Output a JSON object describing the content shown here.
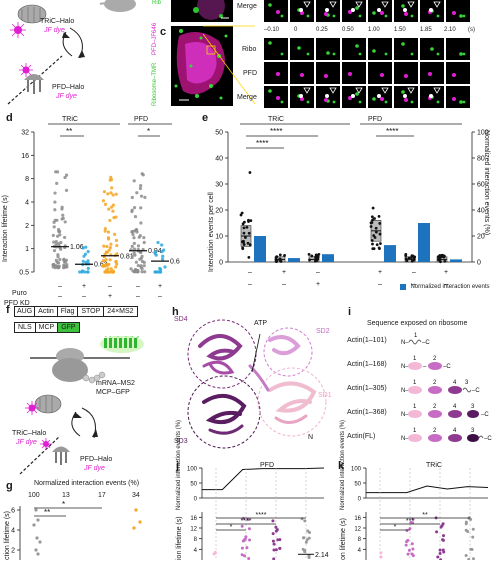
{
  "panel_letters": {
    "c": "c",
    "d": "d",
    "e": "e",
    "f": "f",
    "g": "g",
    "h": "h",
    "i": "i",
    "j": "j",
    "k": "k"
  },
  "schematic_top": {
    "tric_halo": "TRiC–Halo",
    "jf_dye_1": "JF dye",
    "pfd_halo": "PFD–Halo",
    "jf_dye_2": "JF dye"
  },
  "panel_c": {
    "side_ribosome": "Ribosome–TMR",
    "side_pfd": "PFD–JF646",
    "row_labels": [
      "Merge",
      "Ribo",
      "PFD",
      "Merge"
    ],
    "time_points": [
      "–0.10",
      "0",
      "0.25",
      "0.50",
      "1.00",
      "1.50",
      "1.85",
      "2.10"
    ],
    "time_unit": "(s)"
  },
  "panel_d": {
    "ylabel": "Interaction lifetime (s)",
    "groups": [
      "TRiC",
      "PFD"
    ],
    "yticks": [
      "32",
      "16",
      "8",
      "4",
      "2",
      "1",
      "0.5"
    ],
    "ytick_values": [
      32,
      16,
      8,
      4,
      2,
      1,
      0.5
    ],
    "medians": [
      "1.06",
      "0.63",
      "0.81",
      "0.94",
      "0.69"
    ],
    "median_values": [
      1.06,
      0.63,
      0.81,
      0.94,
      0.69
    ],
    "sig": [
      "**",
      "*"
    ],
    "row_puro": "Puro",
    "row_pfdkd": "PFD KD",
    "puro": [
      "–",
      "+",
      "–",
      "–",
      "+"
    ],
    "pfdkd": [
      "–",
      "–",
      "+",
      "–",
      "–"
    ],
    "colors": [
      "#8c8c8c",
      "#29a8de",
      "#f4a623",
      "#8c8c8c",
      "#29a8de"
    ]
  },
  "panel_e": {
    "ylabel_left": "Interaction events per cell",
    "ylabel_right": "Normalized interaction events (%)",
    "legend": "Normalized interaction events",
    "groups": [
      "TRiC",
      "PFD"
    ],
    "yticks_left": [
      "0",
      "10",
      "20",
      "30",
      "40",
      "50"
    ],
    "yticks_left_values": [
      0,
      10,
      20,
      30,
      40,
      50
    ],
    "yticks_right": [
      "0",
      "20",
      "40",
      "60",
      "80",
      "100"
    ],
    "sig": [
      "****",
      "****",
      "****"
    ],
    "puro": [
      "–",
      "+",
      "–",
      "+",
      "–",
      "+"
    ],
    "pfdkd": [
      "–",
      "–",
      "+",
      "–",
      "–",
      "–"
    ],
    "bar_values": [
      20,
      3,
      6,
      13,
      30,
      2
    ],
    "bar_color": "#1e73be"
  },
  "panel_f": {
    "construct_row1": [
      "AUG",
      "Actin",
      "Flag",
      "STOP",
      "24×MS2"
    ],
    "construct_row2": [
      "NLS",
      "MCP",
      "GFP"
    ],
    "mrna_label": "mRNA–MS2",
    "mcp_label": "MCP–GFP",
    "tric_halo": "TRiC–Halo",
    "jf_dye_1": "JF dye",
    "pfd_halo": "PFD–Halo",
    "jf_dye_2": "JF dye"
  },
  "panel_g": {
    "title": "Normalized interaction events (%)",
    "values": [
      "100",
      "13",
      "17",
      "34"
    ],
    "value_numbers": [
      100,
      13,
      17,
      34
    ],
    "sig": [
      "**",
      "*"
    ],
    "ylabel": "ction lifetime (s)",
    "yticks": [
      "6",
      "4",
      "2"
    ],
    "ytick_values": [
      6,
      4,
      2
    ]
  },
  "panel_h": {
    "domains": [
      "SD4",
      "SD2",
      "SD3",
      "SD1"
    ],
    "atp": "ATP",
    "n": "N"
  },
  "panel_i": {
    "title": "Sequence exposed on ribosome",
    "constructs": [
      "Actin(1–101)",
      "Actin(1–168)",
      "Actin(1–305)",
      "Actin(1–368)",
      "Actin(FL)"
    ]
  },
  "panel_j": {
    "title": "PFD",
    "ylabel_top": "Normalized interaction events (%)",
    "ylabel_bottom": "ion lifetime (s)",
    "yticks_top": [
      "100",
      "50",
      "0"
    ],
    "yticks_bottom": [
      "16",
      "12",
      "8",
      "4"
    ],
    "yticks_bottom_values": [
      16,
      12,
      8,
      4
    ],
    "sig": [
      "****",
      "****",
      "*"
    ],
    "median": "2.14",
    "series": [
      {
        "name": "",
        "values": [
          28,
          28,
          95,
          98,
          98,
          98,
          100
        ]
      }
    ]
  },
  "panel_k": {
    "title": "TRiC",
    "ylabel_top": "Normalized interaction events (%)",
    "ylabel_bottom": "on lifetime (s)",
    "yticks_top": [
      "100",
      "50",
      "0"
    ],
    "yticks_bottom": [
      "16",
      "12",
      "8",
      "4"
    ],
    "yticks_bottom_values": [
      16,
      12,
      8,
      4
    ],
    "sig": [
      "**",
      "***",
      "*"
    ],
    "series": [
      {
        "name": "",
        "values": [
          18,
          18,
          18,
          40,
          30,
          38,
          35
        ]
      }
    ]
  },
  "chart_data": [
    {
      "type": "scatter",
      "title": "",
      "ylabel": "Interaction lifetime (s)",
      "yscale": "log2",
      "ylim": [
        0.5,
        32
      ],
      "categories": [
        "TRiC Puro– KD–",
        "TRiC Puro+ KD–",
        "TRiC Puro– KD+",
        "PFD Puro– KD–",
        "PFD Puro+ KD–"
      ],
      "medians": [
        1.06,
        0.63,
        0.81,
        0.94,
        0.69
      ]
    },
    {
      "type": "bar",
      "title": "",
      "ylabel": "Normalized interaction events (%)",
      "categories": [
        "TRiC Puro–",
        "TRiC Puro+",
        "TRiC KD+",
        "PFD Puro–",
        "PFD Puro+",
        "PFD KD"
      ],
      "values": [
        20,
        3,
        6,
        13,
        30,
        2
      ],
      "ylim": [
        0,
        100
      ]
    },
    {
      "type": "line",
      "title": "PFD",
      "ylabel": "Normalized interaction events (%)",
      "ylim": [
        0,
        100
      ],
      "series": [
        {
          "name": "",
          "values": [
            28,
            28,
            95,
            98,
            98,
            98,
            100
          ]
        }
      ]
    },
    {
      "type": "line",
      "title": "TRiC",
      "ylabel": "Normalized interaction events (%)",
      "ylim": [
        0,
        100
      ],
      "series": [
        {
          "name": "",
          "values": [
            18,
            18,
            18,
            40,
            30,
            38,
            35
          ]
        }
      ]
    }
  ]
}
